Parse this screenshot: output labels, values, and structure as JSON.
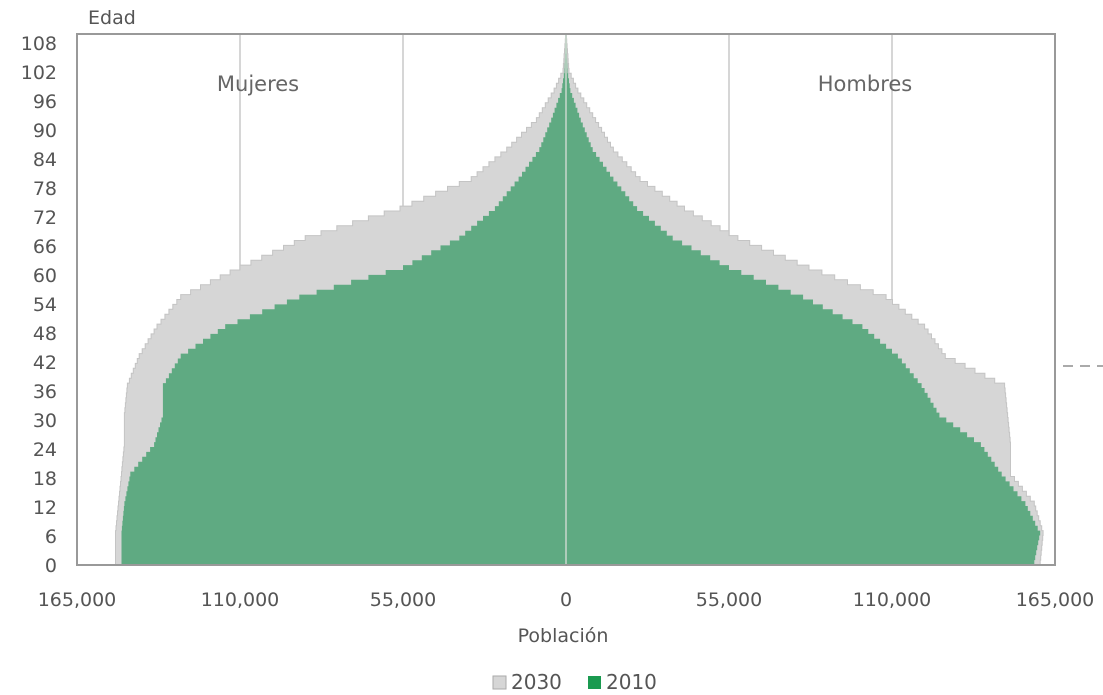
{
  "chart_data": {
    "type": "area",
    "orientation": "population-pyramid",
    "ylabel": "Edad",
    "xlabel": "Población",
    "y_ticks": [
      "108",
      "102",
      "96",
      "90",
      "84",
      "78",
      "72",
      "66",
      "60",
      "54",
      "48",
      "42",
      "36",
      "30",
      "24",
      "18",
      "12",
      "6",
      "0"
    ],
    "x_ticks": [
      "165,000",
      "110,000",
      "55,000",
      "0",
      "55,000",
      "110,000",
      "165,000"
    ],
    "xlim": [
      -165000,
      165000
    ],
    "ylim": [
      0,
      108
    ],
    "grid": "vertical",
    "annotations": {
      "left": "Mujeres",
      "right": "Hombres"
    },
    "legend_position": "bottom",
    "ages": [
      0,
      6,
      12,
      18,
      24,
      30,
      36,
      42,
      48,
      54,
      60,
      66,
      72,
      78,
      84,
      90,
      96,
      100,
      108
    ],
    "series": [
      {
        "name": "2030",
        "color": "#d6d6d6",
        "mujeres": [
          152000,
          152000,
          151000,
          150000,
          149000,
          149000,
          148000,
          144000,
          138000,
          130000,
          110000,
          88000,
          56000,
          32000,
          20000,
          10000,
          4000,
          1000,
          0
        ],
        "hombres": [
          160000,
          161000,
          158000,
          150000,
          150000,
          149000,
          148000,
          128000,
          121000,
          108000,
          82000,
          58000,
          40000,
          25000,
          16000,
          10000,
          4000,
          1000,
          0
        ]
      },
      {
        "name": "2010",
        "color": "#5faa82",
        "mujeres": [
          150000,
          150000,
          149000,
          147000,
          139000,
          136000,
          136000,
          130000,
          115000,
          90000,
          55000,
          36000,
          24000,
          16000,
          9000,
          5000,
          1500,
          500,
          0
        ],
        "hombres": [
          158000,
          160000,
          155000,
          147000,
          140000,
          126000,
          120000,
          112000,
          100000,
          80000,
          55000,
          36000,
          24000,
          16000,
          9000,
          5000,
          1500,
          500,
          0
        ]
      }
    ]
  }
}
